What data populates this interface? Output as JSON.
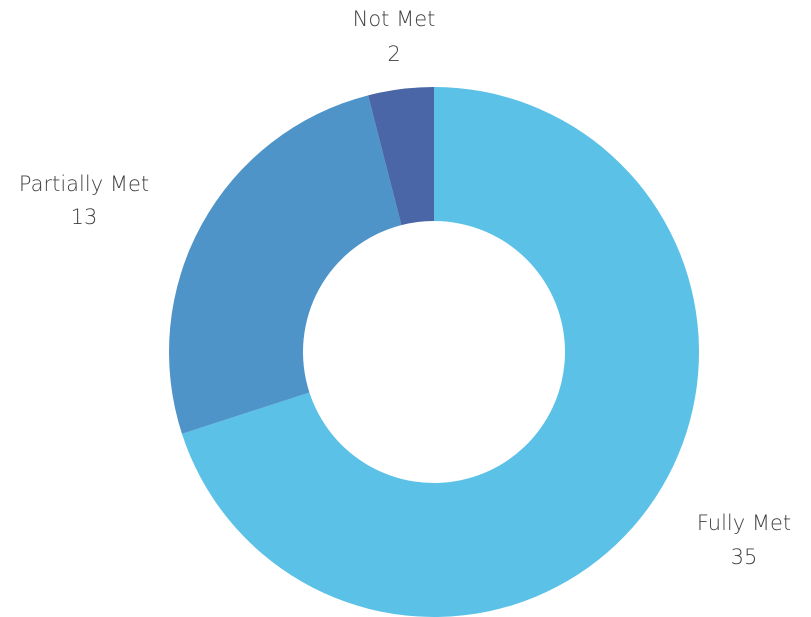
{
  "chart_data": {
    "type": "donut",
    "categories": [
      "Fully Met",
      "Partially Met",
      "Not Met"
    ],
    "values": [
      35,
      13,
      2
    ],
    "colors": [
      "#5bc1e7",
      "#4f94c8",
      "#4a66a6"
    ]
  }
}
